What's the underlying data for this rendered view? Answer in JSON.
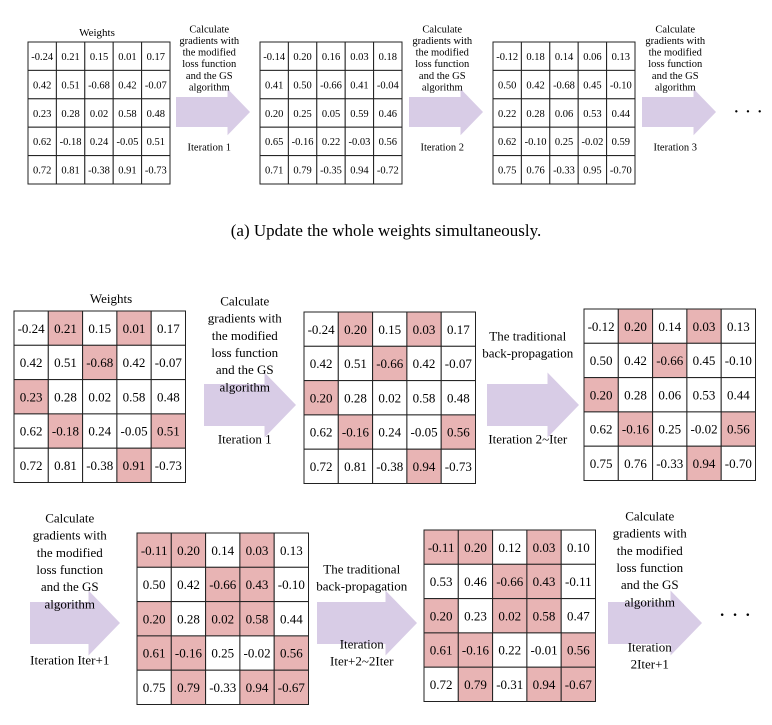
{
  "colors": {
    "highlight": "#e8b4b4",
    "arrow": "#d8cce6",
    "border": "#222222"
  },
  "panel_a": {
    "caption": "(a)  Update the whole weights simultaneously.",
    "weights_label": "Weights",
    "matrices": [
      {
        "values": [
          [
            "-0.24",
            "0.21",
            "0.15",
            "0.01",
            "0.17"
          ],
          [
            "0.42",
            "0.51",
            "-0.68",
            "0.42",
            "-0.07"
          ],
          [
            "0.23",
            "0.28",
            "0.02",
            "0.58",
            "0.48"
          ],
          [
            "0.62",
            "-0.18",
            "0.24",
            "-0.05",
            "0.51"
          ],
          [
            "0.72",
            "0.81",
            "-0.38",
            "0.91",
            "-0.73"
          ]
        ]
      },
      {
        "values": [
          [
            "-0.14",
            "0.20",
            "0.16",
            "0.03",
            "0.18"
          ],
          [
            "0.41",
            "0.50",
            "-0.66",
            "0.41",
            "-0.04"
          ],
          [
            "0.20",
            "0.25",
            "0.05",
            "0.59",
            "0.46"
          ],
          [
            "0.65",
            "-0.16",
            "0.22",
            "-0.03",
            "0.56"
          ],
          [
            "0.71",
            "0.79",
            "-0.35",
            "0.94",
            "-0.72"
          ]
        ]
      },
      {
        "values": [
          [
            "-0.12",
            "0.18",
            "0.14",
            "0.06",
            "0.13"
          ],
          [
            "0.50",
            "0.42",
            "-0.68",
            "0.45",
            "-0.10"
          ],
          [
            "0.22",
            "0.28",
            "0.06",
            "0.53",
            "0.44"
          ],
          [
            "0.62",
            "-0.10",
            "0.25",
            "-0.02",
            "0.59"
          ],
          [
            "0.75",
            "0.76",
            "-0.33",
            "0.95",
            "-0.70"
          ]
        ]
      }
    ],
    "arrows": [
      {
        "text": [
          "Calculate",
          "gradients with",
          "the modified",
          "loss function",
          "and the GS",
          "algorithm"
        ],
        "iteration": [
          "Iteration 1"
        ]
      },
      {
        "text": [
          "Calculate",
          "gradients with",
          "the modified",
          "loss function",
          "and the GS",
          "algorithm"
        ],
        "iteration": [
          "Iteration 2"
        ]
      },
      {
        "text": [
          "Calculate",
          "gradients with",
          "the modified",
          "loss function",
          "and the GS",
          "algorithm"
        ],
        "iteration": [
          "Iteration 3"
        ]
      }
    ],
    "ellipsis": "· · ·"
  },
  "panel_b": {
    "weights_label": "Weights",
    "matrices": [
      {
        "values": [
          [
            "-0.24",
            "0.21",
            "0.15",
            "0.01",
            "0.17"
          ],
          [
            "0.42",
            "0.51",
            "-0.68",
            "0.42",
            "-0.07"
          ],
          [
            "0.23",
            "0.28",
            "0.02",
            "0.58",
            "0.48"
          ],
          [
            "0.62",
            "-0.18",
            "0.24",
            "-0.05",
            "0.51"
          ],
          [
            "0.72",
            "0.81",
            "-0.38",
            "0.91",
            "-0.73"
          ]
        ],
        "highlight": [
          [
            0,
            1
          ],
          [
            0,
            3
          ],
          [
            1,
            2
          ],
          [
            2,
            0
          ],
          [
            3,
            1
          ],
          [
            3,
            4
          ],
          [
            4,
            3
          ]
        ]
      },
      {
        "values": [
          [
            "-0.24",
            "0.20",
            "0.15",
            "0.03",
            "0.17"
          ],
          [
            "0.42",
            "0.51",
            "-0.66",
            "0.42",
            "-0.07"
          ],
          [
            "0.20",
            "0.28",
            "0.02",
            "0.58",
            "0.48"
          ],
          [
            "0.62",
            "-0.16",
            "0.24",
            "-0.05",
            "0.56"
          ],
          [
            "0.72",
            "0.81",
            "-0.38",
            "0.94",
            "-0.73"
          ]
        ],
        "highlight": [
          [
            0,
            1
          ],
          [
            0,
            3
          ],
          [
            1,
            2
          ],
          [
            2,
            0
          ],
          [
            3,
            1
          ],
          [
            3,
            4
          ],
          [
            4,
            3
          ]
        ]
      },
      {
        "values": [
          [
            "-0.12",
            "0.20",
            "0.14",
            "0.03",
            "0.13"
          ],
          [
            "0.50",
            "0.42",
            "-0.66",
            "0.45",
            "-0.10"
          ],
          [
            "0.20",
            "0.28",
            "0.06",
            "0.53",
            "0.44"
          ],
          [
            "0.62",
            "-0.16",
            "0.25",
            "-0.02",
            "0.56"
          ],
          [
            "0.75",
            "0.76",
            "-0.33",
            "0.94",
            "-0.70"
          ]
        ],
        "highlight": [
          [
            0,
            1
          ],
          [
            0,
            3
          ],
          [
            1,
            2
          ],
          [
            2,
            0
          ],
          [
            3,
            1
          ],
          [
            3,
            4
          ],
          [
            4,
            3
          ]
        ]
      },
      {
        "values": [
          [
            "-0.11",
            "0.20",
            "0.14",
            "0.03",
            "0.13"
          ],
          [
            "0.50",
            "0.42",
            "-0.66",
            "0.43",
            "-0.10"
          ],
          [
            "0.20",
            "0.28",
            "0.02",
            "0.58",
            "0.44"
          ],
          [
            "0.61",
            "-0.16",
            "0.25",
            "-0.02",
            "0.56"
          ],
          [
            "0.75",
            "0.79",
            "-0.33",
            "0.94",
            "-0.67"
          ]
        ],
        "highlight": [
          [
            0,
            0
          ],
          [
            0,
            1
          ],
          [
            0,
            3
          ],
          [
            1,
            2
          ],
          [
            1,
            3
          ],
          [
            2,
            0
          ],
          [
            2,
            2
          ],
          [
            2,
            3
          ],
          [
            3,
            0
          ],
          [
            3,
            1
          ],
          [
            3,
            4
          ],
          [
            4,
            1
          ],
          [
            4,
            3
          ],
          [
            4,
            4
          ]
        ]
      },
      {
        "values": [
          [
            "-0.11",
            "0.20",
            "0.12",
            "0.03",
            "0.10"
          ],
          [
            "0.53",
            "0.46",
            "-0.66",
            "0.43",
            "-0.11"
          ],
          [
            "0.20",
            "0.23",
            "0.02",
            "0.58",
            "0.47"
          ],
          [
            "0.61",
            "-0.16",
            "0.22",
            "-0.01",
            "0.56"
          ],
          [
            "0.72",
            "0.79",
            "-0.31",
            "0.94",
            "-0.67"
          ]
        ],
        "highlight": [
          [
            0,
            0
          ],
          [
            0,
            1
          ],
          [
            0,
            3
          ],
          [
            1,
            2
          ],
          [
            1,
            3
          ],
          [
            2,
            0
          ],
          [
            2,
            2
          ],
          [
            2,
            3
          ],
          [
            3,
            0
          ],
          [
            3,
            1
          ],
          [
            3,
            4
          ],
          [
            4,
            1
          ],
          [
            4,
            3
          ],
          [
            4,
            4
          ]
        ]
      }
    ],
    "arrows": [
      {
        "text": [
          "Calculate",
          "gradients with",
          "the modified",
          "loss function",
          "and the GS",
          "algorithm"
        ],
        "iteration": [
          "Iteration 1"
        ]
      },
      {
        "text": [
          "The traditional",
          "back-propagation"
        ],
        "iteration": [
          "Iteration 2~Iter"
        ]
      },
      {
        "text": [
          "Calculate",
          "gradients with",
          "the modified",
          "loss function",
          "and the GS",
          "algorithm"
        ],
        "iteration": [
          "Iteration Iter+1"
        ]
      },
      {
        "text": [
          "The traditional",
          "back-propagation"
        ],
        "iteration": [
          "Iteration",
          "Iter+2~2Iter"
        ]
      },
      {
        "text": [
          "Calculate",
          "gradients with",
          "the modified",
          "loss function",
          "and the GS",
          "algorithm"
        ],
        "iteration": [
          "Iteration",
          "2Iter+1"
        ]
      }
    ],
    "ellipsis": "· · ·"
  }
}
